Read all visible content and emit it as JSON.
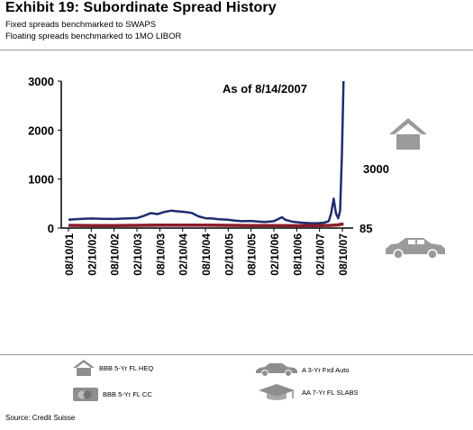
{
  "header": {
    "title": "Exhibit 19: Subordinate Spread History",
    "subtitle1": "Fixed spreads benchmarked to SWAPS",
    "subtitle2": "Floating spreads benchmarked to 1MO LIBOR"
  },
  "chart_data": {
    "type": "line",
    "annotation": "As of 8/14/2007",
    "ylim": [
      0,
      3000
    ],
    "y_ticks": [
      "0",
      "1000",
      "2000",
      "3000"
    ],
    "x_ticks": [
      "08/10/01",
      "02/10/02",
      "08/10/02",
      "02/10/03",
      "08/10/03",
      "02/10/04",
      "08/10/04",
      "02/10/05",
      "08/10/05",
      "02/10/06",
      "08/10/06",
      "02/10/07",
      "08/10/07"
    ],
    "end_labels": [
      "3000",
      "85"
    ],
    "series": [
      {
        "color": "#1f2d6e",
        "values": [
          [
            0,
            170
          ],
          [
            0.5,
            185
          ],
          [
            1,
            195
          ],
          [
            1.5,
            190
          ],
          [
            2,
            185
          ],
          [
            2.5,
            195
          ],
          [
            3,
            205
          ],
          [
            3.3,
            250
          ],
          [
            3.6,
            305
          ],
          [
            3.9,
            285
          ],
          [
            4.2,
            330
          ],
          [
            4.5,
            355
          ],
          [
            4.8,
            340
          ],
          [
            5.1,
            330
          ],
          [
            5.4,
            310
          ],
          [
            5.7,
            240
          ],
          [
            6,
            200
          ],
          [
            6.3,
            195
          ],
          [
            6.6,
            180
          ],
          [
            7,
            170
          ],
          [
            7.3,
            150
          ],
          [
            7.6,
            140
          ],
          [
            8,
            145
          ],
          [
            8.3,
            135
          ],
          [
            8.6,
            125
          ],
          [
            9,
            140
          ],
          [
            9.2,
            185
          ],
          [
            9.35,
            220
          ],
          [
            9.5,
            170
          ],
          [
            9.8,
            130
          ],
          [
            10.2,
            110
          ],
          [
            10.6,
            100
          ],
          [
            10.9,
            100
          ],
          [
            11.2,
            110
          ],
          [
            11.4,
            140
          ],
          [
            11.5,
            280
          ],
          [
            11.62,
            600
          ],
          [
            11.72,
            300
          ],
          [
            11.82,
            200
          ],
          [
            11.9,
            350
          ],
          [
            11.98,
            1500
          ],
          [
            12.05,
            3000
          ]
        ]
      },
      {
        "color": "#8b1c2b",
        "values": [
          [
            0,
            55
          ],
          [
            1,
            50
          ],
          [
            2,
            50
          ],
          [
            3,
            55
          ],
          [
            4,
            60
          ],
          [
            5,
            60
          ],
          [
            6,
            58
          ],
          [
            7,
            55
          ],
          [
            8,
            52
          ],
          [
            9,
            50
          ],
          [
            10,
            48
          ],
          [
            11,
            50
          ],
          [
            11.5,
            55
          ],
          [
            11.8,
            65
          ],
          [
            12.05,
            85
          ]
        ]
      }
    ]
  },
  "legend": {
    "items": [
      {
        "label": "BBB 5-Yr FL HEQ",
        "icon": "house-icon"
      },
      {
        "label": "A 3-Yr Fxd Auto",
        "icon": "car-icon"
      },
      {
        "label": "BBB 5-Yr FL CC",
        "icon": "credit-card-icon"
      },
      {
        "label": "AA 7-Yr FL SLABS",
        "icon": "graduation-cap-icon"
      }
    ]
  },
  "footer": {
    "source": "Source: Credit Suisse"
  }
}
